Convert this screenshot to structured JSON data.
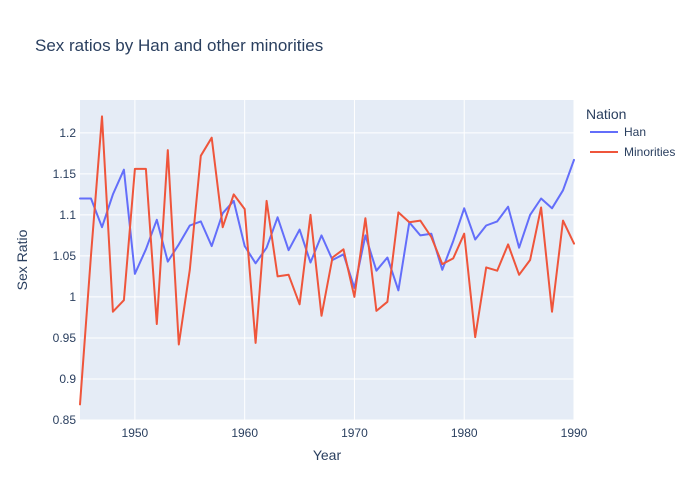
{
  "chart_data": {
    "type": "line",
    "title": "Sex ratios by Han and other minorities",
    "xlabel": "Year",
    "ylabel": "Sex Ratio",
    "xlim": [
      1945,
      1990
    ],
    "ylim": [
      0.85,
      1.24
    ],
    "x_ticks": [
      1950,
      1960,
      1970,
      1980,
      1990
    ],
    "y_ticks": [
      0.85,
      0.9,
      0.95,
      1.0,
      1.05,
      1.1,
      1.15,
      1.2
    ],
    "y_tick_labels": [
      "0.85",
      "0.9",
      "0.95",
      "1",
      "1.05",
      "1.1",
      "1.15",
      "1.2"
    ],
    "legend_title": "Nation",
    "legend_position": "top-right-outside",
    "grid": true,
    "x": [
      1945,
      1946,
      1947,
      1948,
      1949,
      1950,
      1951,
      1952,
      1953,
      1954,
      1955,
      1956,
      1957,
      1958,
      1959,
      1960,
      1961,
      1962,
      1963,
      1964,
      1965,
      1966,
      1967,
      1968,
      1969,
      1970,
      1971,
      1972,
      1973,
      1974,
      1975,
      1976,
      1977,
      1978,
      1979,
      1980,
      1981,
      1982,
      1983,
      1984,
      1985,
      1986,
      1987,
      1988,
      1989,
      1990
    ],
    "series": [
      {
        "name": "Han",
        "color": "#636efa",
        "values": [
          1.12,
          1.12,
          1.085,
          1.125,
          1.155,
          1.028,
          1.058,
          1.094,
          1.043,
          1.064,
          1.087,
          1.092,
          1.062,
          1.102,
          1.117,
          1.062,
          1.041,
          1.06,
          1.097,
          1.057,
          1.082,
          1.042,
          1.075,
          1.045,
          1.052,
          1.011,
          1.075,
          1.032,
          1.048,
          1.008,
          1.091,
          1.075,
          1.077,
          1.033,
          1.068,
          1.108,
          1.07,
          1.087,
          1.092,
          1.11,
          1.06,
          1.1,
          1.12,
          1.108,
          1.13,
          1.167
        ]
      },
      {
        "name": "Minorities",
        "color": "#ef553b",
        "values": [
          0.869,
          1.051,
          1.22,
          0.982,
          0.996,
          1.156,
          1.156,
          0.967,
          1.179,
          0.942,
          1.033,
          1.172,
          1.194,
          1.085,
          1.125,
          1.107,
          0.944,
          1.117,
          1.025,
          1.027,
          0.991,
          1.1,
          0.977,
          1.048,
          1.058,
          1.0,
          1.096,
          0.983,
          0.994,
          1.103,
          1.091,
          1.093,
          1.073,
          1.04,
          1.047,
          1.077,
          0.951,
          1.036,
          1.032,
          1.064,
          1.027,
          1.045,
          1.109,
          0.982,
          1.093,
          1.065
        ]
      }
    ]
  },
  "colors": {
    "plot_background": "#e5ecf6",
    "grid": "#ffffff",
    "text": "#2a3f5f"
  }
}
